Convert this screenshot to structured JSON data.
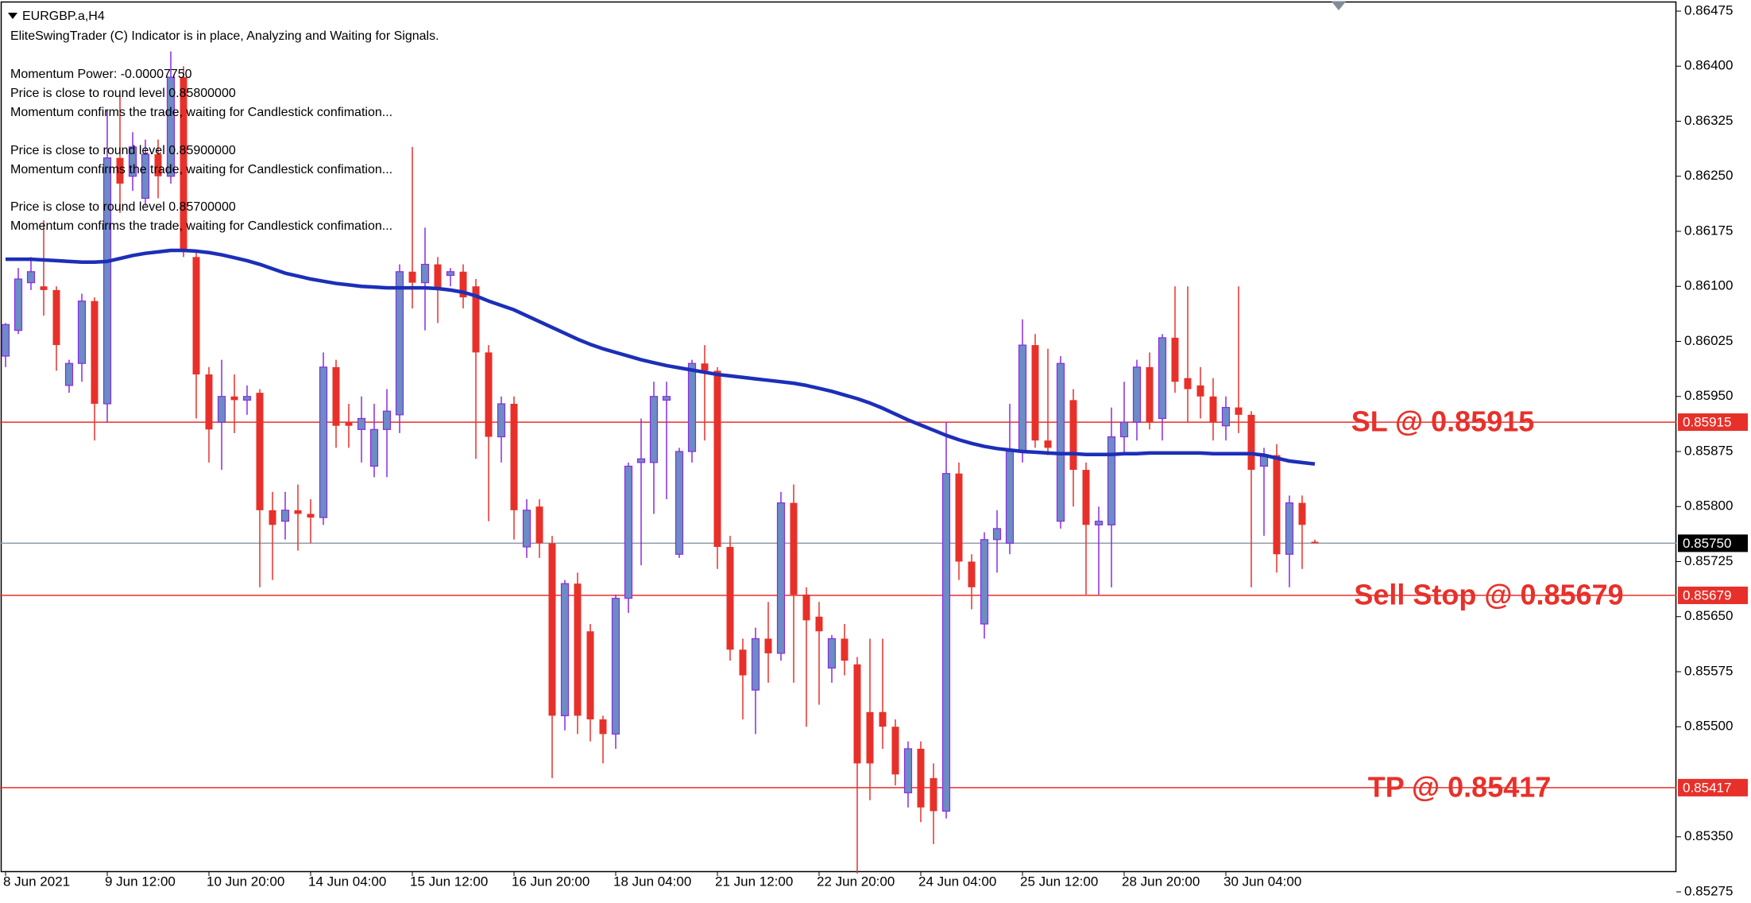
{
  "chart_data": {
    "type": "candlestick",
    "title": "EURGBP.a,H4",
    "annotations": [
      "EliteSwingTrader (C) Indicator is in place, Analyzing and Waiting for Signals.",
      "Momentum Power: -0.00007750",
      "Price is close to round level 0.85800000",
      "Momentum confirms the trade, waiting for Candlestick confimation...",
      "Price is close to round level 0.85900000",
      "Momentum confirms the trade, waiting for Candlestick confimation...",
      "Price is close to round level 0.85700000",
      "Momentum confirms the trade, waiting for Candlestick confimation..."
    ],
    "categories": [
      "8 Jun 2021",
      null,
      null,
      null,
      null,
      null,
      null,
      null,
      "9 Jun 12:00",
      null,
      null,
      null,
      null,
      null,
      null,
      null,
      "10 Jun 20:00",
      null,
      null,
      null,
      null,
      null,
      null,
      null,
      "14 Jun 04:00",
      null,
      null,
      null,
      null,
      null,
      null,
      null,
      "15 Jun 12:00",
      null,
      null,
      null,
      null,
      null,
      null,
      null,
      "16 Jun 20:00",
      null,
      null,
      null,
      null,
      null,
      null,
      null,
      "18 Jun 04:00",
      null,
      null,
      null,
      null,
      null,
      null,
      null,
      "21 Jun 12:00",
      null,
      null,
      null,
      null,
      null,
      null,
      null,
      "22 Jun 20:00",
      null,
      null,
      null,
      null,
      null,
      null,
      null,
      "24 Jun 04:00",
      null,
      null,
      null,
      null,
      null,
      null,
      null,
      "25 Jun 12:00",
      null,
      null,
      null,
      null,
      null,
      null,
      null,
      "28 Jun 20:00",
      null,
      null,
      null,
      null,
      null,
      null,
      null,
      "30 Jun 04:00",
      null,
      null,
      null,
      null,
      null,
      null,
      null
    ],
    "ohlc": [
      [
        0.86005,
        0.8605,
        0.8599,
        0.86048
      ],
      [
        0.8604,
        0.86125,
        0.86035,
        0.8611
      ],
      [
        0.86105,
        0.8614,
        0.86095,
        0.8612
      ],
      [
        0.861,
        0.8619,
        0.8606,
        0.86095
      ],
      [
        0.86095,
        0.861,
        0.85985,
        0.8602
      ],
      [
        0.85965,
        0.86,
        0.85955,
        0.85995
      ],
      [
        0.85995,
        0.8609,
        0.8597,
        0.8608
      ],
      [
        0.8608,
        0.86085,
        0.8589,
        0.8594
      ],
      [
        0.8594,
        0.8634,
        0.85915,
        0.86275
      ],
      [
        0.86275,
        0.8636,
        0.862,
        0.8624
      ],
      [
        0.8625,
        0.8631,
        0.8623,
        0.8629
      ],
      [
        0.8622,
        0.863,
        0.8621,
        0.8628
      ],
      [
        0.8628,
        0.863,
        0.8622,
        0.8625
      ],
      [
        0.8625,
        0.8642,
        0.8624,
        0.86385
      ],
      [
        0.86385,
        0.864,
        0.8614,
        0.8615
      ],
      [
        0.8614,
        0.8615,
        0.8592,
        0.8598
      ],
      [
        0.8598,
        0.8599,
        0.8586,
        0.85905
      ],
      [
        0.85915,
        0.86,
        0.8585,
        0.8595
      ],
      [
        0.8595,
        0.8598,
        0.859,
        0.85945
      ],
      [
        0.85945,
        0.85965,
        0.85925,
        0.8595
      ],
      [
        0.85955,
        0.8596,
        0.8569,
        0.85795
      ],
      [
        0.85795,
        0.8582,
        0.857,
        0.85775
      ],
      [
        0.8578,
        0.8582,
        0.85755,
        0.85795
      ],
      [
        0.85795,
        0.8583,
        0.8574,
        0.8579
      ],
      [
        0.8579,
        0.8581,
        0.8575,
        0.85785
      ],
      [
        0.85785,
        0.8601,
        0.85775,
        0.8599
      ],
      [
        0.8599,
        0.86,
        0.8588,
        0.8591
      ],
      [
        0.85915,
        0.8594,
        0.8588,
        0.8591
      ],
      [
        0.85905,
        0.8595,
        0.8586,
        0.8592
      ],
      [
        0.85855,
        0.8594,
        0.8584,
        0.85905
      ],
      [
        0.85905,
        0.8596,
        0.8584,
        0.8593
      ],
      [
        0.85925,
        0.8613,
        0.859,
        0.8612
      ],
      [
        0.8612,
        0.8629,
        0.8607,
        0.86105
      ],
      [
        0.86105,
        0.8618,
        0.8604,
        0.8613
      ],
      [
        0.8613,
        0.8614,
        0.8605,
        0.86095
      ],
      [
        0.86115,
        0.86125,
        0.861,
        0.8612
      ],
      [
        0.8612,
        0.8613,
        0.8607,
        0.86085
      ],
      [
        0.861,
        0.8611,
        0.85865,
        0.8601
      ],
      [
        0.8601,
        0.8602,
        0.8578,
        0.85895
      ],
      [
        0.85895,
        0.8595,
        0.8586,
        0.8594
      ],
      [
        0.8594,
        0.8595,
        0.85755,
        0.85795
      ],
      [
        0.85745,
        0.8581,
        0.8573,
        0.85795
      ],
      [
        0.858,
        0.8581,
        0.8573,
        0.8575
      ],
      [
        0.8575,
        0.8576,
        0.8543,
        0.85515
      ],
      [
        0.85515,
        0.857,
        0.85495,
        0.85695
      ],
      [
        0.85695,
        0.8571,
        0.8549,
        0.85515
      ],
      [
        0.8563,
        0.8564,
        0.8548,
        0.8551
      ],
      [
        0.8551,
        0.85515,
        0.8545,
        0.8549
      ],
      [
        0.8549,
        0.8568,
        0.8547,
        0.85675
      ],
      [
        0.85675,
        0.8586,
        0.85655,
        0.85855
      ],
      [
        0.8586,
        0.8592,
        0.8572,
        0.85865
      ],
      [
        0.8586,
        0.8597,
        0.8579,
        0.8595
      ],
      [
        0.85945,
        0.8597,
        0.8581,
        0.8595
      ],
      [
        0.85735,
        0.8588,
        0.8573,
        0.85875
      ],
      [
        0.85875,
        0.86,
        0.8586,
        0.85995
      ],
      [
        0.85995,
        0.8602,
        0.8589,
        0.85985
      ],
      [
        0.85985,
        0.8599,
        0.85715,
        0.85745
      ],
      [
        0.85745,
        0.8576,
        0.8559,
        0.85605
      ],
      [
        0.85605,
        0.8562,
        0.8551,
        0.8557
      ],
      [
        0.8555,
        0.85635,
        0.8549,
        0.8562
      ],
      [
        0.8562,
        0.8567,
        0.8556,
        0.856
      ],
      [
        0.856,
        0.8582,
        0.8559,
        0.85805
      ],
      [
        0.85805,
        0.8583,
        0.8556,
        0.8568
      ],
      [
        0.8568,
        0.8569,
        0.855,
        0.85645
      ],
      [
        0.8565,
        0.8567,
        0.8553,
        0.8563
      ],
      [
        0.8558,
        0.85625,
        0.8556,
        0.8562
      ],
      [
        0.8562,
        0.8564,
        0.8557,
        0.8559
      ],
      [
        0.85585,
        0.85595,
        0.853,
        0.8545
      ],
      [
        0.8552,
        0.8562,
        0.854,
        0.8545
      ],
      [
        0.8552,
        0.8562,
        0.8547,
        0.855
      ],
      [
        0.855,
        0.8551,
        0.8542,
        0.85435
      ],
      [
        0.8541,
        0.8548,
        0.8539,
        0.8547
      ],
      [
        0.8547,
        0.8548,
        0.8537,
        0.8539
      ],
      [
        0.8543,
        0.8545,
        0.8534,
        0.85385
      ],
      [
        0.85385,
        0.85915,
        0.85375,
        0.85845
      ],
      [
        0.85845,
        0.8586,
        0.857,
        0.85725
      ],
      [
        0.85725,
        0.85735,
        0.8566,
        0.8569
      ],
      [
        0.8564,
        0.85765,
        0.8562,
        0.85755
      ],
      [
        0.85755,
        0.85795,
        0.8571,
        0.8577
      ],
      [
        0.8575,
        0.8594,
        0.85735,
        0.85875
      ],
      [
        0.85875,
        0.86055,
        0.8586,
        0.8602
      ],
      [
        0.8602,
        0.86035,
        0.8588,
        0.8589
      ],
      [
        0.8589,
        0.86015,
        0.8587,
        0.8588
      ],
      [
        0.8578,
        0.86005,
        0.8577,
        0.85995
      ],
      [
        0.85945,
        0.8596,
        0.858,
        0.8585
      ],
      [
        0.8585,
        0.8586,
        0.8568,
        0.85775
      ],
      [
        0.85775,
        0.858,
        0.8568,
        0.8578
      ],
      [
        0.85775,
        0.85935,
        0.8569,
        0.85895
      ],
      [
        0.85895,
        0.8597,
        0.8587,
        0.85915
      ],
      [
        0.85915,
        0.86,
        0.8589,
        0.8599
      ],
      [
        0.8599,
        0.8601,
        0.85905,
        0.85915
      ],
      [
        0.8592,
        0.86035,
        0.8589,
        0.8603
      ],
      [
        0.8603,
        0.861,
        0.85955,
        0.8597
      ],
      [
        0.85975,
        0.861,
        0.85915,
        0.8596
      ],
      [
        0.85965,
        0.8599,
        0.8592,
        0.8595
      ],
      [
        0.8595,
        0.85975,
        0.8589,
        0.85915
      ],
      [
        0.8591,
        0.8595,
        0.8589,
        0.85935
      ],
      [
        0.85935,
        0.861,
        0.859,
        0.85925
      ],
      [
        0.85925,
        0.8593,
        0.8569,
        0.8585
      ],
      [
        0.85855,
        0.8588,
        0.8576,
        0.8587
      ],
      [
        0.8587,
        0.85885,
        0.8571,
        0.85735
      ],
      [
        0.85735,
        0.85815,
        0.8569,
        0.85805
      ],
      [
        0.85805,
        0.85815,
        0.85715,
        0.85775
      ],
      [
        0.85752,
        0.85755,
        0.8575,
        0.8575
      ]
    ],
    "up_color": "#6b8cc4",
    "up_wick_color": "#8a2be2",
    "down_color": "#e8302a",
    "ma": {
      "color": "#1c2fb8",
      "values": [
        0.86137,
        0.86137,
        0.86137,
        0.86136,
        0.86135,
        0.86134,
        0.86133,
        0.86133,
        0.86134,
        0.86138,
        0.86142,
        0.86145,
        0.86147,
        0.86149,
        0.86149,
        0.86148,
        0.86146,
        0.86143,
        0.86139,
        0.86135,
        0.8613,
        0.86124,
        0.86118,
        0.86114,
        0.8611,
        0.86107,
        0.86104,
        0.86102,
        0.861,
        0.86099,
        0.86098,
        0.86098,
        0.86098,
        0.86098,
        0.86097,
        0.86095,
        0.86092,
        0.86087,
        0.8608,
        0.86074,
        0.86068,
        0.8606,
        0.86052,
        0.86044,
        0.86036,
        0.86028,
        0.86021,
        0.86015,
        0.8601,
        0.86005,
        0.86,
        0.85996,
        0.85992,
        0.85989,
        0.85986,
        0.85983,
        0.8598,
        0.85978,
        0.85976,
        0.85974,
        0.85972,
        0.8597,
        0.85968,
        0.85965,
        0.85961,
        0.85957,
        0.85952,
        0.85947,
        0.85941,
        0.85934,
        0.85926,
        0.85918,
        0.85911,
        0.85904,
        0.85897,
        0.85891,
        0.85886,
        0.85882,
        0.85879,
        0.85877,
        0.85875,
        0.85874,
        0.85873,
        0.85872,
        0.85872,
        0.85871,
        0.85871,
        0.85871,
        0.85872,
        0.85872,
        0.85873,
        0.85873,
        0.85873,
        0.85873,
        0.85873,
        0.85872,
        0.85872,
        0.85872,
        0.85872,
        0.8587,
        0.85866,
        0.85862,
        0.8586,
        0.85858
      ]
    },
    "hlines": [
      {
        "name": "SL @ 0.85915",
        "value": 0.85915,
        "color": "#e8302a"
      },
      {
        "name": "Sell Stop @ 0.85679",
        "value": 0.85679,
        "color": "#e8302a"
      },
      {
        "name": "TP @ 0.85417",
        "value": 0.85417,
        "color": "#e8302a"
      }
    ],
    "current_price": {
      "value": 0.8575,
      "label": "0.85750",
      "color": "#8c9aa5"
    },
    "ylim": [
      0.85275,
      0.86475
    ],
    "yticks": [
      0.86475,
      {
        "value": 0.864,
        "label": "0.86400"
      },
      0.86325,
      {
        "value": 0.8625,
        "label": "0.86250"
      },
      0.86175,
      {
        "value": 0.861,
        "label": "0.86100"
      },
      0.86025,
      {
        "value": 0.8595,
        "label": "0.85950"
      },
      0.85875,
      {
        "value": 0.858,
        "label": "0.85800"
      },
      0.85725,
      {
        "value": 0.8565,
        "label": "0.85650"
      },
      0.85575,
      {
        "value": 0.855,
        "label": "0.85500"
      },
      {
        "value": 0.8535,
        "label": "0.85350"
      },
      0.85275
    ]
  }
}
